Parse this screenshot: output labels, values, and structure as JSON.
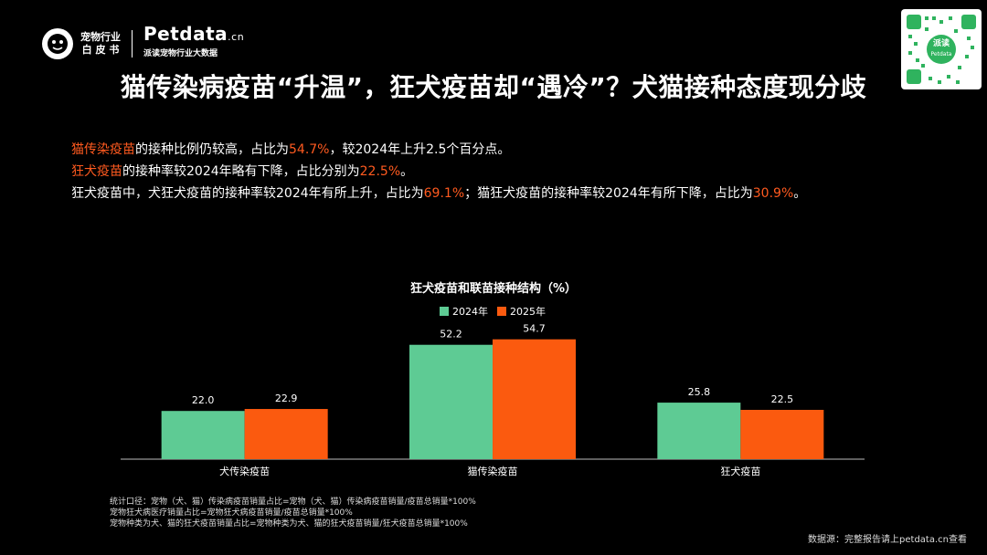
{
  "logo": {
    "line1": "宠物行业",
    "line2": "白 皮 书",
    "brand": "Petdata",
    "brand_suffix": ".cn",
    "brand_sub": "派读宠物行业大数据"
  },
  "qr": {
    "badge_line1": "派读",
    "badge_line2": "Petdata"
  },
  "title": "猫传染病疫苗“升温”，狂犬疫苗却“遇冷”？犬猫接种态度现分歧",
  "notes": [
    {
      "hl": "猫传染疫苗",
      "text1": "的接种比例仍较高，占比为",
      "hl2": "54.7%",
      "text2": "，较2024年上升2.5个百分点。"
    },
    {
      "hl": "狂犬疫苗",
      "text1": "的接种率较2024年略有下降，占比分别为",
      "hl2": "22.5%",
      "text2": "。"
    },
    {
      "hl": "",
      "text1": "狂犬疫苗中，犬狂犬疫苗的接种率较2024年有所上升，占比为",
      "hl2": "69.1%",
      "text2": "；猫狂犬疫苗的接种率较2024年有所下降，占比为",
      "hl3": "30.9%",
      "text3": "。"
    }
  ],
  "chart_data": {
    "type": "bar",
    "title": "狂犬疫苗和联苗接种结构（%）",
    "categories": [
      "犬传染疫苗",
      "猫传染疫苗",
      "狂犬疫苗"
    ],
    "series": [
      {
        "name": "2024年",
        "values": [
          22.0,
          52.2,
          25.8
        ],
        "color": "#5ecb94"
      },
      {
        "name": "2025年",
        "values": [
          22.9,
          54.7,
          22.5
        ],
        "color": "#fb5a0f"
      }
    ],
    "legend_position": "top-center",
    "grid": false
  },
  "footnote": [
    "统计口径：宠物（犬、猫）传染病疫苗销量占比=宠物（犬、猫）传染病疫苗销量/疫苗总销量*100%",
    "宠物狂犬病医疗销量占比=宠物狂犬病疫苗销量/疫苗总销量*100%",
    "宠物种类为犬、猫的狂犬疫苗销量占比=宠物种类为犬、猫的狂犬疫苗销量/狂犬疫苗总销量*100%"
  ],
  "source": "数据源：完整报告请上petdata.cn查看"
}
